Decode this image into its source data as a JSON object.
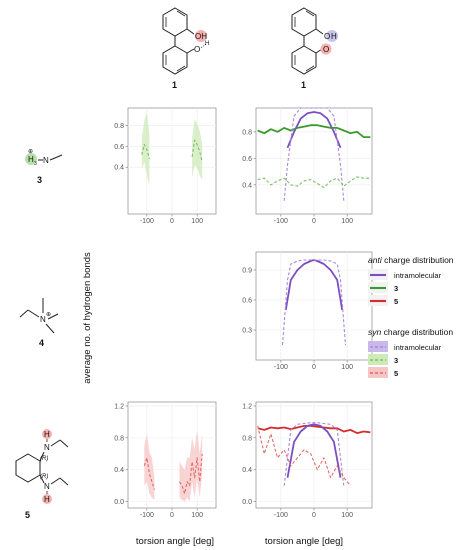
{
  "colors": {
    "intramolecular": "#7a4fc2",
    "intramolecular_band": "#cbb8ea",
    "c3": "#3a9a2c",
    "c3_syn": "#7cc16a",
    "c3_band": "#cdeab8",
    "c5": "#d82c2c",
    "c5_syn": "#e36a6a",
    "c5_band": "#f6c6c6",
    "panel_bg": "#ffffff",
    "panel_border": "#9a9a9a"
  },
  "structures": {
    "top_left": {
      "oh": "OH",
      "o": "O",
      "h": "H",
      "label": "1"
    },
    "top_right": {
      "o": "O",
      "h": "H",
      "label": "1"
    },
    "c3": {
      "label": "3",
      "h3": "H",
      "sub3": "3",
      "n": "N",
      "plus": "⊕"
    },
    "c4": {
      "label": "4",
      "n": "N",
      "plus": "⊕"
    },
    "c5": {
      "label": "5",
      "h_top": "H",
      "n_top": "N",
      "r1": "(R)",
      "r2": "(R)",
      "h_bot": "H",
      "n_bot": "N"
    }
  },
  "axes": {
    "ylabel": "average no. of hydrogen bonds",
    "xlabel": "torsion angle [deg]"
  },
  "legend": {
    "anti_title_italic": "anti",
    "anti_title_rest": " charge distribution",
    "syn_title_italic": "syn",
    "syn_title_rest": " charge distribution",
    "anti_items": [
      "intramolecular",
      "3",
      "5"
    ],
    "syn_items": [
      "intramolecular",
      "3",
      "5"
    ]
  },
  "chart_data": [
    {
      "type": "line",
      "panel": "row1-left (compound 3, conformer 1 left)",
      "xlim": [
        -175,
        175
      ],
      "ylim": [
        -0.05,
        0.97
      ],
      "xticks": [
        "-100",
        "0",
        "100"
      ],
      "yticks": [
        "0.4",
        "0.6",
        "0.8"
      ],
      "series": [
        {
          "name": "3",
          "style": "syn",
          "x": [
            -120,
            -110,
            -100,
            -90
          ],
          "y": [
            0.52,
            0.62,
            0.57,
            0.48
          ],
          "lo": [
            0.38,
            0.45,
            0.32,
            0.22
          ],
          "hi": [
            0.68,
            0.85,
            0.93,
            0.72
          ]
        },
        {
          "name": "3",
          "style": "syn",
          "x": [
            80,
            90,
            100,
            110,
            120
          ],
          "y": [
            0.5,
            0.66,
            0.62,
            0.55,
            0.45
          ],
          "lo": [
            0.3,
            0.42,
            0.4,
            0.32,
            0.28
          ],
          "hi": [
            0.68,
            0.86,
            0.82,
            0.75,
            0.62
          ]
        }
      ]
    },
    {
      "type": "line",
      "panel": "row1-right (compound 3, conformer 1 right)",
      "xlim": [
        -175,
        175
      ],
      "ylim": [
        0.18,
        0.98
      ],
      "xticks": [
        "-100",
        "0",
        "100"
      ],
      "yticks": [
        "0.4",
        "0.6",
        "0.8"
      ],
      "series": [
        {
          "name": "intramolecular",
          "style": "anti",
          "x": [
            -80,
            -60,
            -40,
            -20,
            0,
            20,
            40,
            60,
            80
          ],
          "y": [
            0.68,
            0.8,
            0.9,
            0.94,
            0.95,
            0.94,
            0.9,
            0.8,
            0.68
          ]
        },
        {
          "name": "3",
          "style": "anti",
          "x": [
            -170,
            -150,
            -130,
            -110,
            -90,
            -70,
            -50,
            -30,
            -10,
            10,
            30,
            50,
            70,
            90,
            110,
            130,
            150,
            170
          ],
          "y": [
            0.81,
            0.79,
            0.82,
            0.8,
            0.83,
            0.81,
            0.83,
            0.84,
            0.85,
            0.85,
            0.84,
            0.83,
            0.83,
            0.81,
            0.79,
            0.8,
            0.76,
            0.76
          ]
        },
        {
          "name": "intramolecular",
          "style": "syn",
          "x": [
            -90,
            -80,
            -60,
            -40,
            -20,
            0,
            20,
            40,
            60,
            80,
            90
          ],
          "y": [
            0.28,
            0.55,
            0.92,
            0.98,
            0.98,
            0.98,
            0.98,
            0.98,
            0.92,
            0.55,
            0.28
          ]
        },
        {
          "name": "3",
          "style": "syn",
          "x": [
            -170,
            -150,
            -130,
            -110,
            -90,
            -70,
            -50,
            -30,
            -10,
            10,
            30,
            50,
            70,
            90,
            110,
            130,
            150,
            170
          ],
          "y": [
            0.44,
            0.45,
            0.4,
            0.43,
            0.45,
            0.4,
            0.39,
            0.43,
            0.44,
            0.41,
            0.38,
            0.43,
            0.45,
            0.39,
            0.43,
            0.46,
            0.45,
            0.45
          ]
        }
      ]
    },
    {
      "type": "line",
      "panel": "row2-right (compound 4)",
      "xlim": [
        -175,
        175
      ],
      "ylim": [
        0.0,
        1.08
      ],
      "xticks": [
        "-100",
        "0",
        "100"
      ],
      "yticks": [
        "0.3",
        "0.6",
        "0.9"
      ],
      "series": [
        {
          "name": "intramolecular",
          "style": "anti",
          "x": [
            -85,
            -70,
            -50,
            -30,
            -10,
            0,
            10,
            30,
            50,
            70,
            85
          ],
          "y": [
            0.5,
            0.8,
            0.9,
            0.96,
            0.99,
            1.0,
            0.99,
            0.96,
            0.9,
            0.8,
            0.5
          ]
        },
        {
          "name": "intramolecular",
          "style": "syn",
          "x": [
            -95,
            -80,
            -70,
            -50,
            -30,
            0,
            30,
            50,
            70,
            80,
            95
          ],
          "y": [
            0.15,
            0.8,
            0.96,
            0.99,
            1.0,
            1.0,
            1.0,
            0.99,
            0.96,
            0.8,
            0.15
          ]
        }
      ]
    },
    {
      "type": "line",
      "panel": "row3-left (compound 5, left)",
      "xlim": [
        -175,
        175
      ],
      "ylim": [
        -0.08,
        1.25
      ],
      "xticks": [
        "-100",
        "0",
        "100"
      ],
      "yticks": [
        "0.0",
        "0.4",
        "0.8",
        "1.2"
      ],
      "series": [
        {
          "name": "5",
          "style": "syn",
          "x": [
            -110,
            -100,
            -90,
            -80,
            -70
          ],
          "y": [
            0.45,
            0.55,
            0.35,
            0.25,
            0.15
          ],
          "lo": [
            0.2,
            0.25,
            0.1,
            0.05,
            0.02
          ],
          "hi": [
            0.7,
            0.85,
            0.62,
            0.55,
            0.3
          ]
        },
        {
          "name": "5",
          "style": "syn",
          "x": [
            30,
            40,
            50,
            60,
            70,
            80,
            90,
            100,
            110,
            120
          ],
          "y": [
            0.25,
            0.2,
            0.1,
            0.25,
            0.2,
            0.5,
            0.3,
            0.55,
            0.25,
            0.6
          ],
          "lo": [
            0.05,
            0.02,
            0.0,
            0.05,
            0.0,
            0.25,
            0.05,
            0.3,
            0.05,
            0.35
          ],
          "hi": [
            0.5,
            0.45,
            0.4,
            0.55,
            0.55,
            0.8,
            0.65,
            0.9,
            0.6,
            0.85
          ]
        }
      ]
    },
    {
      "type": "line",
      "panel": "row3-right (compound 5, right)",
      "xlim": [
        -175,
        175
      ],
      "ylim": [
        -0.08,
        1.25
      ],
      "xticks": [
        "-100",
        "0",
        "100"
      ],
      "yticks": [
        "0.0",
        "0.4",
        "0.8",
        "1.2"
      ],
      "series": [
        {
          "name": "5",
          "style": "anti",
          "x": [
            -170,
            -150,
            -130,
            -110,
            -90,
            -70,
            -50,
            -30,
            -10,
            10,
            30,
            50,
            70,
            90,
            110,
            130,
            150,
            170
          ],
          "y": [
            0.92,
            0.9,
            0.93,
            0.92,
            0.93,
            0.91,
            0.93,
            0.95,
            0.95,
            0.94,
            0.93,
            0.92,
            0.92,
            0.88,
            0.9,
            0.86,
            0.88,
            0.87
          ]
        },
        {
          "name": "intramolecular",
          "style": "anti",
          "x": [
            -80,
            -60,
            -40,
            -20,
            0,
            20,
            40,
            60,
            80
          ],
          "y": [
            0.3,
            0.75,
            0.88,
            0.95,
            0.97,
            0.95,
            0.88,
            0.75,
            0.3
          ]
        },
        {
          "name": "intramolecular",
          "style": "syn",
          "x": [
            -90,
            -70,
            -50,
            -30,
            -10,
            10,
            30,
            50,
            70,
            90
          ],
          "y": [
            0.2,
            0.9,
            0.97,
            0.98,
            0.99,
            0.99,
            0.98,
            0.97,
            0.9,
            0.2
          ]
        },
        {
          "name": "5",
          "style": "syn",
          "x": [
            -170,
            -150,
            -130,
            -110,
            -90,
            -70,
            -50,
            -30,
            -10,
            10,
            30,
            50,
            70,
            90,
            110
          ],
          "y": [
            0.95,
            0.6,
            0.85,
            0.55,
            0.65,
            0.45,
            0.55,
            0.65,
            0.6,
            0.4,
            0.55,
            0.3,
            0.45,
            0.3,
            0.2
          ]
        }
      ]
    }
  ]
}
